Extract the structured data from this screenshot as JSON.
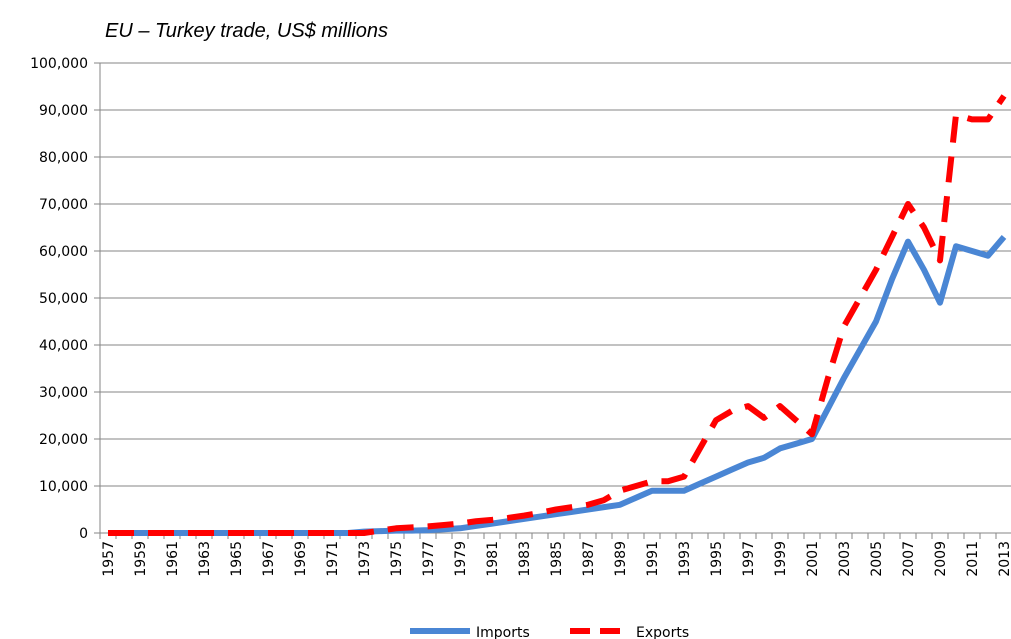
{
  "chart_data": {
    "type": "line",
    "subtitle": "EU – Turkey trade, US$ millions",
    "categories": [
      "1957",
      null,
      "1959",
      null,
      "1961",
      null,
      "1963",
      null,
      "1965",
      null,
      "1967",
      null,
      "1969",
      null,
      "1971",
      null,
      "1973",
      null,
      "1975",
      null,
      "1977",
      null,
      "1979",
      null,
      "1981",
      null,
      "1983",
      null,
      "1985",
      null,
      "1987",
      null,
      "1989",
      null,
      "1991",
      null,
      "1993",
      null,
      "1995",
      null,
      "1997",
      null,
      "1999",
      null,
      "2001",
      null,
      "2003",
      null,
      "2005",
      null,
      "2007",
      null,
      "2009",
      null,
      "2011",
      null,
      "2013"
    ],
    "series": [
      {
        "name": "Imports",
        "color": "#4a86d4",
        "dash": false,
        "values": [
          0,
          0,
          0,
          0,
          0,
          0,
          0,
          0,
          0,
          0,
          0,
          0,
          0,
          0,
          0,
          0,
          300,
          400,
          500,
          500,
          600,
          800,
          1000,
          1500,
          2000,
          2500,
          3000,
          3500,
          4000,
          4500,
          5000,
          5500,
          6000,
          7500,
          9000,
          9000,
          9000,
          10500,
          12000,
          13500,
          15000,
          16000,
          18000,
          19000,
          20000,
          26500,
          33000,
          39000,
          45000,
          54000,
          62000,
          56000,
          49000,
          61000,
          60000,
          59000,
          63000
        ]
      },
      {
        "name": "Exports",
        "color": "#ff0000",
        "dash": true,
        "values": [
          0,
          0,
          0,
          0,
          0,
          0,
          0,
          0,
          0,
          0,
          0,
          0,
          0,
          0,
          0,
          0,
          0,
          500,
          1000,
          1200,
          1400,
          1700,
          2000,
          2500,
          2800,
          3200,
          3700,
          4300,
          5000,
          5500,
          6000,
          7000,
          9000,
          10000,
          11000,
          11000,
          12000,
          18000,
          24000,
          26000,
          27000,
          24500,
          27000,
          24000,
          21000,
          33000,
          44000,
          50000,
          56000,
          63000,
          70000,
          65000,
          58000,
          89000,
          88000,
          88000,
          93000
        ]
      }
    ],
    "ylim": [
      0,
      100000
    ],
    "yticks": [
      0,
      {
        "value": 10000,
        "label": "10,000"
      },
      {
        "value": 20000,
        "label": "20,000"
      },
      {
        "value": 30000,
        "label": "30,000"
      },
      {
        "value": 40000,
        "label": "40,000"
      },
      {
        "value": 50000,
        "label": "50,000"
      },
      {
        "value": 60000,
        "label": "60,000"
      },
      {
        "value": 70000,
        "label": "70,000"
      },
      {
        "value": 80000,
        "label": "80,000"
      },
      {
        "value": 90000,
        "label": "90,000"
      },
      {
        "value": 100000,
        "label": "100,000"
      }
    ],
    "grid": true,
    "legend": "bottom"
  }
}
